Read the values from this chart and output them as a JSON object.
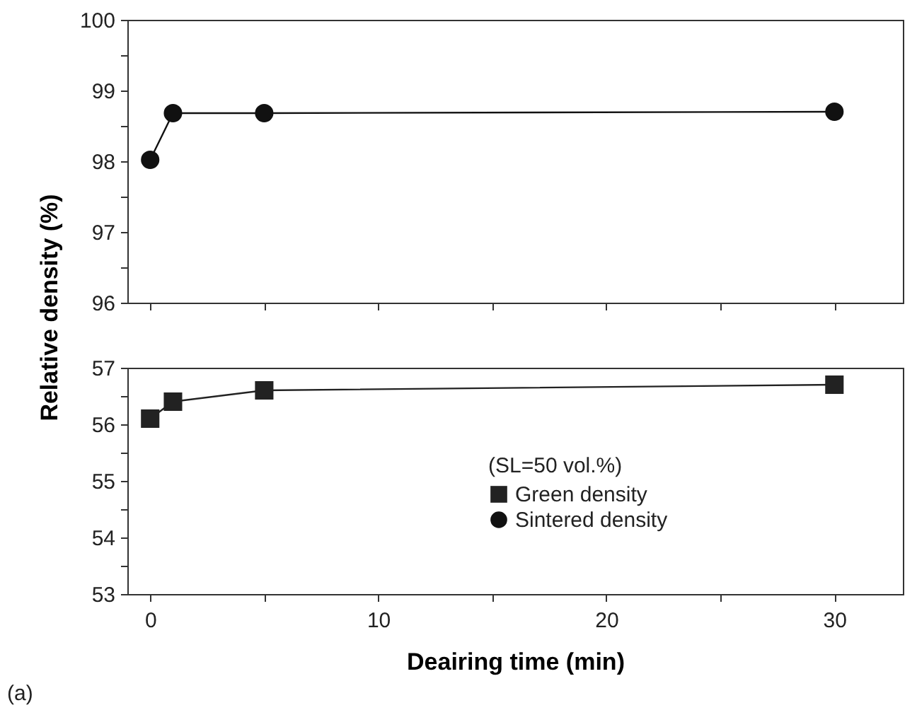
{
  "chart_data": [
    {
      "type": "line",
      "ylabel": "Relative density (%)",
      "x": [
        0,
        1,
        5,
        30
      ],
      "xlim": [
        -1,
        33
      ],
      "xticks": [
        0,
        {
          "value": 5,
          "label": null
        },
        10,
        {
          "value": 15,
          "label": null
        },
        20,
        {
          "value": 25,
          "label": null
        },
        30
      ],
      "ylim": [
        96,
        100
      ],
      "yticks": [
        96,
        {
          "value": 96.5,
          "label": null
        },
        97,
        {
          "value": 97.5,
          "label": null
        },
        98,
        {
          "value": 98.5,
          "label": null
        },
        99,
        {
          "value": 99.5,
          "label": null
        },
        100
      ],
      "tick_labels": "y",
      "marker": "circle",
      "grid": false,
      "series": [
        {
          "name": "Sintered density",
          "color": "#111111",
          "values": [
            98.02,
            98.68,
            98.68,
            98.7
          ]
        }
      ]
    },
    {
      "type": "line",
      "xlabel": "Deairing time (min)",
      "x": [
        0,
        1,
        5,
        30
      ],
      "xlim": [
        -1,
        33
      ],
      "xticks": [
        0,
        {
          "value": 5,
          "label": null
        },
        10,
        {
          "value": 15,
          "label": null
        },
        20,
        {
          "value": 25,
          "label": null
        },
        30
      ],
      "ylim": [
        53,
        57
      ],
      "yticks": [
        53,
        {
          "value": 53.5,
          "label": null
        },
        54,
        {
          "value": 54.5,
          "label": null
        },
        55,
        {
          "value": 55.5,
          "label": null
        },
        56,
        {
          "value": 56.5,
          "label": null
        },
        57
      ],
      "marker": "square",
      "grid": false,
      "legend": "bottom right",
      "legend_title": "(SL=50 vol.%)",
      "annotations": [
        "(a)"
      ],
      "series": [
        {
          "name": "Green density",
          "color": "#222222",
          "values": [
            56.1,
            56.4,
            56.6,
            56.7
          ]
        }
      ]
    }
  ]
}
